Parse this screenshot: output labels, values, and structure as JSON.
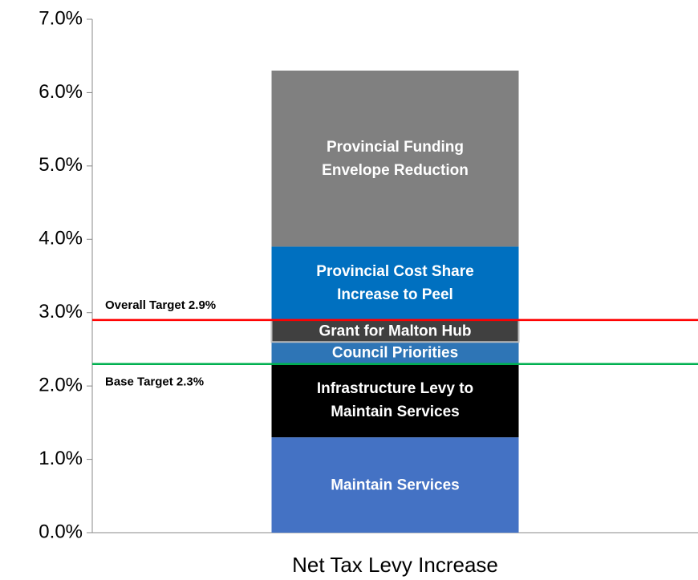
{
  "chart_data": {
    "type": "stacked_bar",
    "categories": [
      "Net Tax Levy Increase"
    ],
    "series": [
      {
        "name": "Maintain Services",
        "color": "#4472c4",
        "values": [
          1.3
        ]
      },
      {
        "name": "Infrastructure Levy to Maintain Services",
        "color": "#000000",
        "values": [
          1.0
        ]
      },
      {
        "name": "Council Priorities",
        "color": "#2e75b6",
        "values": [
          0.3
        ]
      },
      {
        "name": "Grant for Malton Hub",
        "color": "#404040",
        "values": [
          0.3
        ]
      },
      {
        "name": "Provincial Cost Share Increase to Peel",
        "color": "#0070c0",
        "values": [
          1.0
        ]
      },
      {
        "name": "Provincial Funding Envelope Reduction",
        "color": "#808080",
        "values": [
          2.4
        ]
      }
    ],
    "ylim": [
      0,
      7
    ],
    "yticks": [
      {
        "value": 0,
        "label": "0.0%"
      },
      {
        "value": 1,
        "label": "1.0%"
      },
      {
        "value": 2,
        "label": "2.0%"
      },
      {
        "value": 3,
        "label": "3.0%"
      },
      {
        "value": 4,
        "label": "4.0%"
      },
      {
        "value": 5,
        "label": "5.0%"
      },
      {
        "value": 6,
        "label": "6.0%"
      },
      {
        "value": 7,
        "label": "7.0%"
      }
    ],
    "reference_lines": [
      {
        "label": "Overall Target 2.9%",
        "value": 2.9,
        "color": "#ff0000",
        "label_side": "above"
      },
      {
        "label": "Base Target 2.3%",
        "value": 2.3,
        "color": "#00b050",
        "label_side": "below"
      }
    ]
  }
}
